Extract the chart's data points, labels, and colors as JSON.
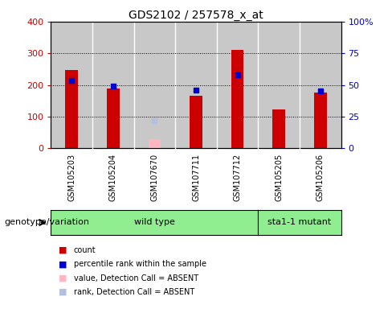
{
  "title": "GDS2102 / 257578_x_at",
  "samples": [
    "GSM105203",
    "GSM105204",
    "GSM107670",
    "GSM107711",
    "GSM107712",
    "GSM105205",
    "GSM105206"
  ],
  "count_values": [
    248,
    190,
    null,
    165,
    310,
    122,
    175
  ],
  "count_absent": [
    null,
    null,
    28,
    null,
    null,
    null,
    null
  ],
  "rank_values": [
    215,
    197,
    null,
    183,
    232,
    null,
    181
  ],
  "rank_absent": [
    null,
    null,
    88,
    null,
    null,
    null,
    null
  ],
  "wild_type_indices": [
    0,
    1,
    2,
    3,
    4
  ],
  "mutant_indices": [
    5,
    6
  ],
  "wt_label": "wild type",
  "mut_label": "sta1-1 mutant",
  "ylim_left": [
    0,
    400
  ],
  "ylim_right": [
    0,
    100
  ],
  "left_yticks": [
    0,
    100,
    200,
    300,
    400
  ],
  "right_yticks": [
    0,
    25,
    50,
    75,
    100
  ],
  "right_yticklabels": [
    "0",
    "25",
    "50",
    "75",
    "100%"
  ],
  "count_color": "#cc0000",
  "rank_color": "#0000cc",
  "absent_count_color": "#ffb6c1",
  "absent_rank_color": "#b0c0e0",
  "col_bg_color": "#c8c8c8",
  "plot_bg_color": "#ffffff",
  "genotype_color": "#90ee90",
  "grid_color": "black",
  "legend_items": [
    {
      "label": "count",
      "color": "#cc0000"
    },
    {
      "label": "percentile rank within the sample",
      "color": "#0000cc"
    },
    {
      "label": "value, Detection Call = ABSENT",
      "color": "#ffb6c1"
    },
    {
      "label": "rank, Detection Call = ABSENT",
      "color": "#b0c0e0"
    }
  ],
  "title_fontsize": 10,
  "tick_fontsize": 8,
  "label_fontsize": 8,
  "legend_fontsize": 8
}
